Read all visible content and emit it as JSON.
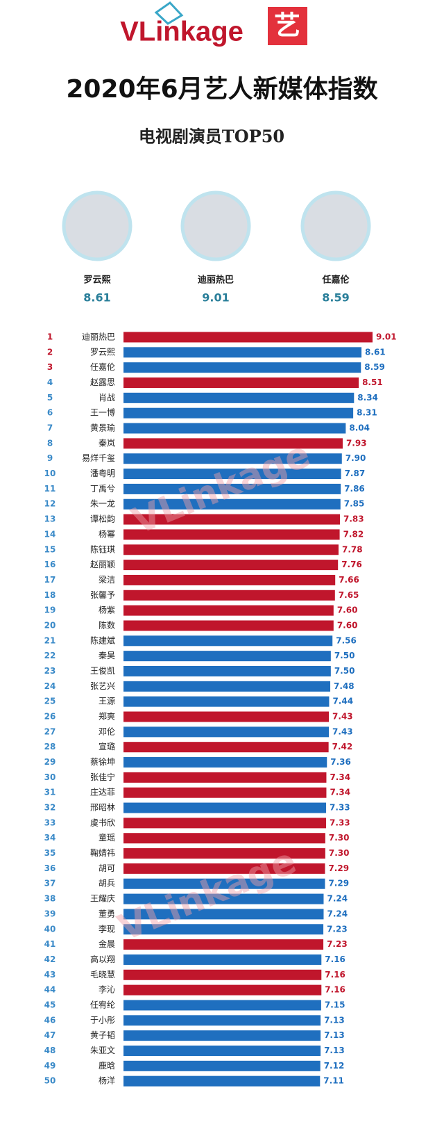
{
  "logo": "VLinkage",
  "logo_icon": "艺",
  "watermark": "VLinkage",
  "chart_data": {
    "type": "bar",
    "orientation": "horizontal",
    "title": "2020年6月艺人新媒体指数",
    "subtitle": "电视剧演员TOP50",
    "top3": [
      {
        "name": "罗云熙",
        "value": 8.61
      },
      {
        "name": "迪丽热巴",
        "value": 9.01
      },
      {
        "name": "任嘉伦",
        "value": 8.59
      }
    ],
    "ranks": [
      1,
      2,
      3,
      4,
      5,
      6,
      7,
      8,
      9,
      10,
      11,
      12,
      13,
      14,
      15,
      16,
      17,
      18,
      19,
      20,
      21,
      22,
      23,
      24,
      25,
      26,
      27,
      28,
      29,
      30,
      31,
      32,
      33,
      34,
      35,
      36,
      37,
      38,
      39,
      40,
      41,
      42,
      43,
      44,
      45,
      46,
      47,
      48,
      49,
      50
    ],
    "categories": [
      "迪丽热巴",
      "罗云熙",
      "任嘉伦",
      "赵露思",
      "肖战",
      "王一博",
      "黄景瑜",
      "秦岚",
      "易烊千玺",
      "潘粤明",
      "丁禹兮",
      "朱一龙",
      "谭松韵",
      "杨幂",
      "陈钰琪",
      "赵丽颖",
      "梁洁",
      "张馨予",
      "杨紫",
      "陈数",
      "陈建斌",
      "秦昊",
      "王俊凯",
      "张艺兴",
      "王源",
      "郑爽",
      "邓伦",
      "宣璐",
      "蔡徐坤",
      "张佳宁",
      "庄达菲",
      "邢昭林",
      "虞书欣",
      "童瑶",
      "鞠婧祎",
      "胡可",
      "胡兵",
      "王耀庆",
      "董勇",
      "李现",
      "金晨",
      "高以翔",
      "毛晓慧",
      "李沁",
      "任宥纶",
      "于小彤",
      "黄子韬",
      "朱亚文",
      "鹿晗",
      "杨洋"
    ],
    "values": [
      9.01,
      8.61,
      8.59,
      8.51,
      8.34,
      8.31,
      8.04,
      7.93,
      7.9,
      7.87,
      7.86,
      7.85,
      7.83,
      7.82,
      7.78,
      7.76,
      7.66,
      7.65,
      7.6,
      7.6,
      7.56,
      7.5,
      7.5,
      7.48,
      7.44,
      7.43,
      7.43,
      7.42,
      7.36,
      7.34,
      7.34,
      7.33,
      7.33,
      7.3,
      7.3,
      7.29,
      7.29,
      7.24,
      7.24,
      7.23,
      7.23,
      7.16,
      7.16,
      7.16,
      7.15,
      7.13,
      7.13,
      7.13,
      7.12,
      7.11
    ],
    "value_labels": [
      "9.01",
      "8.61",
      "8.59",
      "8.51",
      "8.34",
      "8.31",
      "8.04",
      "7.93",
      "7.90",
      "7.87",
      "7.86",
      "7.85",
      "7.83",
      "7.82",
      "7.78",
      "7.76",
      "7.66",
      "7.65",
      "7.60",
      "7.60",
      "7.56",
      "7.50",
      "7.50",
      "7.48",
      "7.44",
      "7.43",
      "7.43",
      "7.42",
      "7.36",
      "7.34",
      "7.34",
      "7.33",
      "7.33",
      "7.30",
      "7.30",
      "7.29",
      "7.29",
      "7.24",
      "7.24",
      "7.23",
      "7.23",
      "7.16",
      "7.16",
      "7.16",
      "7.15",
      "7.13",
      "7.13",
      "7.13",
      "7.12",
      "7.11"
    ],
    "colors": [
      "#c0162c",
      "#1f6fbf",
      "#1f6fbf",
      "#c0162c",
      "#1f6fbf",
      "#1f6fbf",
      "#1f6fbf",
      "#c0162c",
      "#1f6fbf",
      "#1f6fbf",
      "#1f6fbf",
      "#1f6fbf",
      "#c0162c",
      "#c0162c",
      "#c0162c",
      "#c0162c",
      "#c0162c",
      "#c0162c",
      "#c0162c",
      "#c0162c",
      "#1f6fbf",
      "#1f6fbf",
      "#1f6fbf",
      "#1f6fbf",
      "#1f6fbf",
      "#c0162c",
      "#1f6fbf",
      "#c0162c",
      "#1f6fbf",
      "#c0162c",
      "#c0162c",
      "#1f6fbf",
      "#c0162c",
      "#c0162c",
      "#c0162c",
      "#c0162c",
      "#1f6fbf",
      "#1f6fbf",
      "#1f6fbf",
      "#1f6fbf",
      "#c0162c",
      "#1f6fbf",
      "#c0162c",
      "#c0162c",
      "#1f6fbf",
      "#1f6fbf",
      "#1f6fbf",
      "#1f6fbf",
      "#1f6fbf",
      "#1f6fbf"
    ]
  }
}
